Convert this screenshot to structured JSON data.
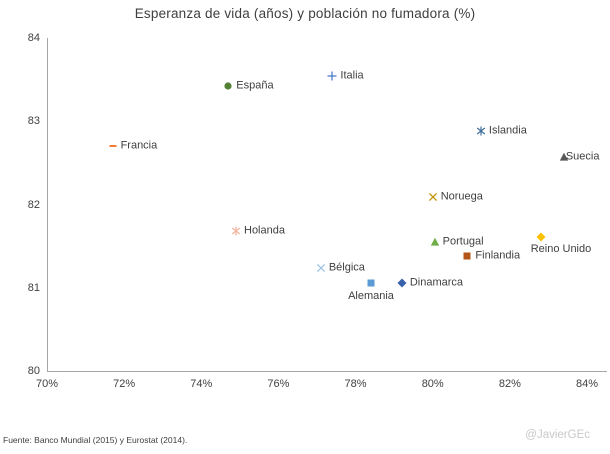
{
  "footer": {
    "source": "Fuente: Banco  Mundial  (2015) y Eurostat (2014).",
    "credit": "@JavierGEc"
  },
  "colors": {
    "axis": "#a6a6a6",
    "text": "#404040",
    "title": "#3f3f3f",
    "credit": "#c9c9c9"
  },
  "chart_data": {
    "type": "scatter",
    "title": "Esperanza de vida (años) y población no fumadora (%)",
    "xlabel": "",
    "ylabel": "",
    "xlim": [
      70,
      84
    ],
    "ylim": [
      80,
      84
    ],
    "grid": false,
    "legend": "none",
    "x_ticks": [
      {
        "value": 70,
        "label": "70%"
      },
      {
        "value": 72,
        "label": "72%"
      },
      {
        "value": 74,
        "label": "74%"
      },
      {
        "value": 76,
        "label": "76%"
      },
      {
        "value": 78,
        "label": "78%"
      },
      {
        "value": 80,
        "label": "80%"
      },
      {
        "value": 82,
        "label": "82%"
      },
      {
        "value": 84,
        "label": "84%"
      }
    ],
    "y_ticks": [
      {
        "value": 80,
        "label": "80"
      },
      {
        "value": 81,
        "label": "81"
      },
      {
        "value": 82,
        "label": "82"
      },
      {
        "value": 83,
        "label": "83"
      },
      {
        "value": 84,
        "label": "84"
      }
    ],
    "points": [
      {
        "name": "España",
        "x": 74.7,
        "y": 83.42,
        "marker": "circle",
        "color": "#548235",
        "label_pos": "right"
      },
      {
        "name": "Italia",
        "x": 77.4,
        "y": 83.54,
        "marker": "plus",
        "color": "#4472c4",
        "label_pos": "right"
      },
      {
        "name": "Francia",
        "x": 71.7,
        "y": 82.7,
        "marker": "dash",
        "color": "#ed7d31",
        "label_pos": "right"
      },
      {
        "name": "Islandia",
        "x": 81.25,
        "y": 82.88,
        "marker": "asterisk",
        "color": "#41719c",
        "label_pos": "right"
      },
      {
        "name": "Suecia",
        "x": 83.4,
        "y": 82.57,
        "marker": "triangle",
        "color": "#595959",
        "label_pos": "right-tight"
      },
      {
        "name": "Noruega",
        "x": 80.0,
        "y": 82.09,
        "marker": "x",
        "color": "#bf8f00",
        "label_pos": "right"
      },
      {
        "name": "Holanda",
        "x": 74.9,
        "y": 81.68,
        "marker": "asterisk",
        "color": "#f2b49c",
        "label_pos": "right"
      },
      {
        "name": "Portugal",
        "x": 80.05,
        "y": 81.55,
        "marker": "triangle",
        "color": "#70ad47",
        "label_pos": "right"
      },
      {
        "name": "Reino Unido",
        "x": 82.8,
        "y": 81.61,
        "marker": "diamond",
        "color": "#ffc000",
        "label_pos": "below-start"
      },
      {
        "name": "Finlandia",
        "x": 80.9,
        "y": 81.38,
        "marker": "square",
        "color": "#b45617",
        "label_pos": "right"
      },
      {
        "name": "Bélgica",
        "x": 77.1,
        "y": 81.24,
        "marker": "x",
        "color": "#9dc3e6",
        "label_pos": "right"
      },
      {
        "name": "Alemania",
        "x": 78.4,
        "y": 81.06,
        "marker": "square",
        "color": "#5b9bd5",
        "label_pos": "below-center"
      },
      {
        "name": "Dinamarca",
        "x": 79.2,
        "y": 81.06,
        "marker": "diamond",
        "color": "#3761ab",
        "label_pos": "right"
      }
    ]
  }
}
